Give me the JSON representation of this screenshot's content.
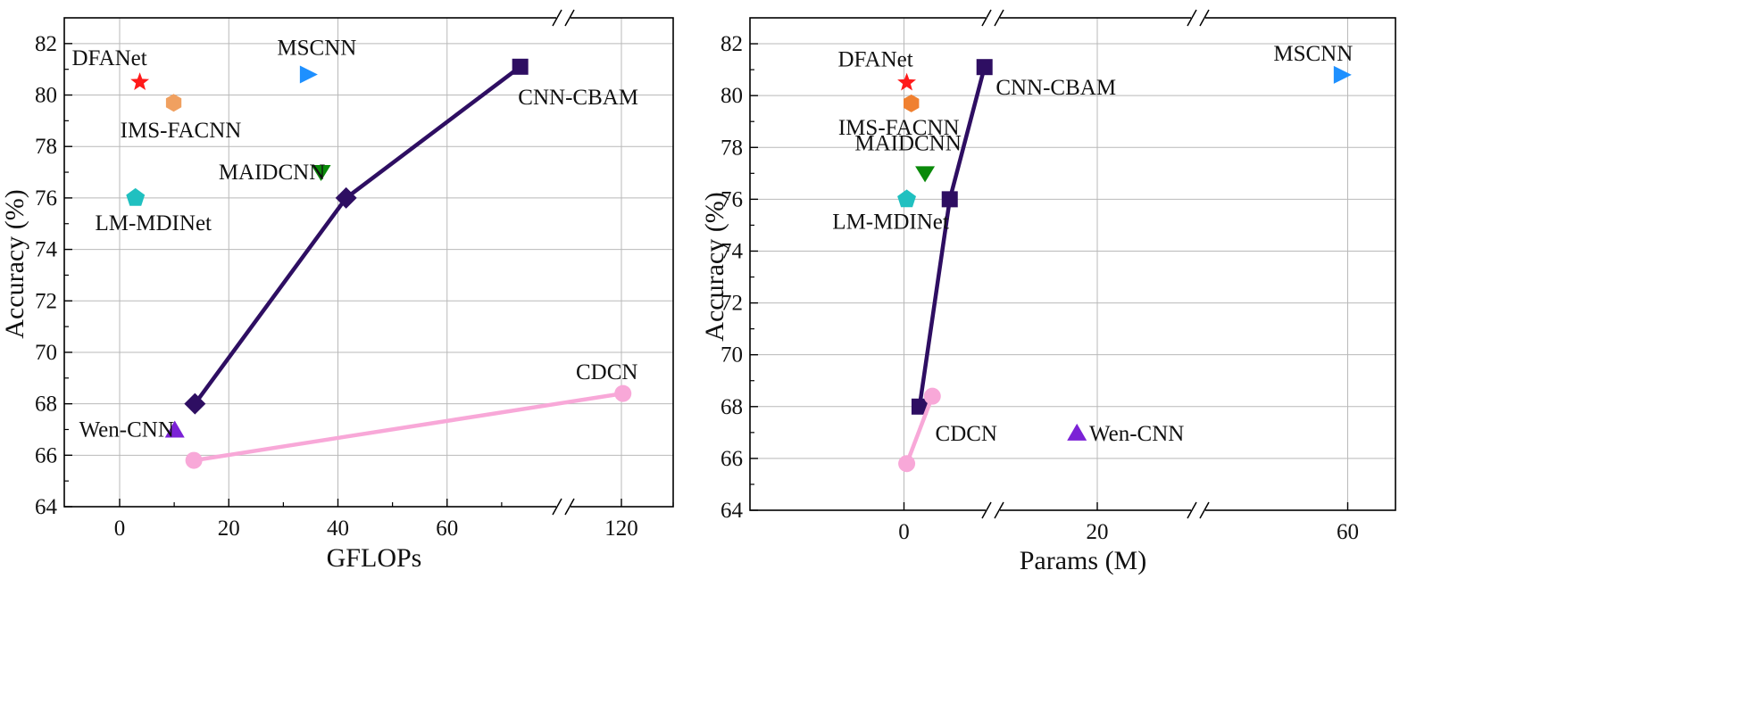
{
  "chart_data": [
    {
      "type": "scatter",
      "xlabel": "GFLOPs",
      "ylabel": "Accuracy (%)",
      "xlim": [
        -10,
        130
      ],
      "ylim": [
        64,
        83
      ],
      "x_axis_break": "between 80 and 120",
      "x_ticks": [
        "0",
        "20",
        "40",
        "60",
        "120"
      ],
      "y_ticks": [
        "64",
        "66",
        "68",
        "70",
        "72",
        "74",
        "76",
        "78",
        "80",
        "82"
      ],
      "grid": true,
      "points": [
        {
          "name": "DFANet",
          "x": 3.7,
          "y": 80.5,
          "marker": "star",
          "color": "#ff1a1a"
        },
        {
          "name": "IMS-FACNN",
          "x": 9.9,
          "y": 79.7,
          "marker": "hexagon",
          "color": "#f0a060"
        },
        {
          "name": "LM-MDINet",
          "x": 2.9,
          "y": 76.0,
          "marker": "pentagon",
          "color": "#20c0c0"
        },
        {
          "name": "MSCNN",
          "x": 34.5,
          "y": 80.8,
          "marker": "triangle-right",
          "color": "#1e90ff"
        },
        {
          "name": "MAIDCNN",
          "x": 36.9,
          "y": 77.0,
          "marker": "triangle-down",
          "color": "#0a8a0a"
        },
        {
          "name": "Wen-CNN",
          "x": 10.1,
          "y": 67.0,
          "marker": "triangle-up",
          "color": "#7b22d6"
        }
      ],
      "series": [
        {
          "name": "CNN-CBAM",
          "marker": "square",
          "color": "#2e0e62",
          "x": [
            13.8,
            41.5,
            73.4
          ],
          "y": [
            68.0,
            76.0,
            81.1
          ],
          "markers": [
            "diamond",
            "diamond",
            "square"
          ]
        },
        {
          "name": "CDCN",
          "marker": "circle",
          "color": "#f8a8d8",
          "x": [
            13.6,
            120.3
          ],
          "y": [
            65.8,
            68.4
          ],
          "markers": [
            "circle",
            "circle"
          ]
        }
      ],
      "labels": [
        "DFANet",
        "IMS-FACNN",
        "LM-MDINet",
        "MSCNN",
        "MAIDCNN",
        "Wen-CNN",
        "CNN-CBAM",
        "CDCN"
      ]
    },
    {
      "type": "scatter",
      "xlabel": "Params (M)",
      "ylabel": "Accuracy (%)",
      "xlim": [
        -5,
        70
      ],
      "ylim": [
        64,
        83
      ],
      "x_axis_break": "two breaks, near 10 and near 30",
      "x_ticks": [
        "0",
        "20",
        "60"
      ],
      "y_ticks": [
        "64",
        "66",
        "68",
        "70",
        "72",
        "74",
        "76",
        "78",
        "80",
        "82"
      ],
      "grid": true,
      "points": [
        {
          "name": "DFANet",
          "x": 0.3,
          "y": 80.5,
          "marker": "star",
          "color": "#ff1a1a"
        },
        {
          "name": "IMS-FACNN",
          "x": 0.8,
          "y": 79.7,
          "marker": "hexagon",
          "color": "#f08030"
        },
        {
          "name": "MAIDCNN",
          "x": 2.3,
          "y": 77.0,
          "marker": "triangle-down",
          "color": "#0a8a0a"
        },
        {
          "name": "LM-MDINet",
          "x": 0.3,
          "y": 76.0,
          "marker": "pentagon",
          "color": "#20c0c0"
        },
        {
          "name": "MSCNN",
          "x": 58.8,
          "y": 80.8,
          "marker": "triangle-right",
          "color": "#1e90ff"
        },
        {
          "name": "Wen-CNN",
          "x": 18.0,
          "y": 67.0,
          "marker": "triangle-up",
          "color": "#7b22d6"
        }
      ],
      "series": [
        {
          "name": "CNN-CBAM",
          "marker": "square",
          "color": "#2e0e62",
          "x": [
            1.7,
            5.0,
            8.8
          ],
          "y": [
            68.0,
            76.0,
            81.1
          ],
          "markers": [
            "square",
            "square",
            "square"
          ]
        },
        {
          "name": "CDCN",
          "marker": "circle",
          "color": "#f8a8d8",
          "x": [
            0.3,
            3.1
          ],
          "y": [
            65.8,
            68.4
          ],
          "markers": [
            "circle",
            "circle"
          ]
        }
      ],
      "labels": [
        "DFANet",
        "IMS-FACNN",
        "MAIDCNN",
        "LM-MDINet",
        "MSCNN",
        "CNN-CBAM",
        "Wen-CNN",
        "CDCN"
      ]
    }
  ]
}
